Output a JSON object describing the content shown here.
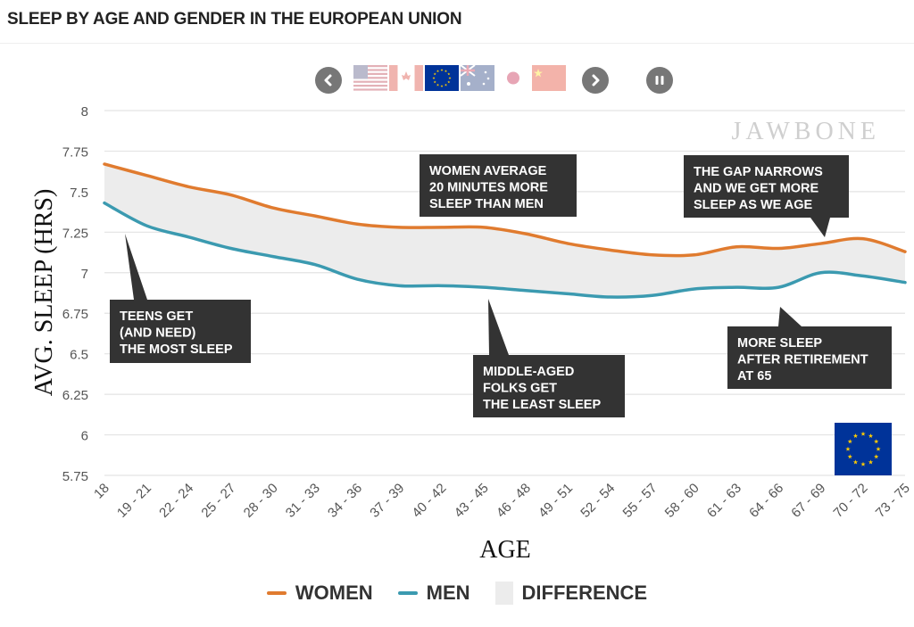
{
  "title": "SLEEP BY AGE AND GENDER IN THE EUROPEAN UNION",
  "controls": {
    "prev_icon": "chevron-left-icon",
    "next_icon": "chevron-right-icon",
    "pause_icon": "pause-icon"
  },
  "flags": [
    {
      "name": "usa-flag-icon",
      "active": false
    },
    {
      "name": "canada-flag-icon",
      "active": false
    },
    {
      "name": "eu-flag-icon",
      "active": true
    },
    {
      "name": "australia-flag-icon",
      "active": false
    },
    {
      "name": "japan-flag-icon",
      "active": false
    },
    {
      "name": "china-flag-icon",
      "active": false
    }
  ],
  "watermark": "JAWBONE",
  "colors": {
    "women": "#e07b2f",
    "men": "#3b9ab0",
    "difference": "#ececec",
    "callout": "#333333",
    "eu_blue": "#003399",
    "eu_gold": "#ffcc00"
  },
  "chart_data": {
    "type": "line",
    "title": "SLEEP BY AGE AND GENDER IN THE EUROPEAN UNION",
    "xlabel": "AGE",
    "ylabel": "AVG. SLEEP (HRS)",
    "ylim": [
      5.75,
      8
    ],
    "yticks": [
      "8",
      "7.75",
      "7.5",
      "7.25",
      "7",
      "6.75",
      "6.5",
      "6.25",
      "6",
      "5.75"
    ],
    "grid": true,
    "legend_position": "bottom",
    "categories": [
      "18",
      "19 - 21",
      "22 - 24",
      "25 - 27",
      "28 - 30",
      "31 - 33",
      "34 - 36",
      "37 - 39",
      "40 - 42",
      "43 - 45",
      "46 - 48",
      "49 - 51",
      "52 - 54",
      "55 - 57",
      "58 - 60",
      "61 - 63",
      "64 - 66",
      "67 - 69",
      "70 - 72",
      "73 - 75"
    ],
    "series": [
      {
        "name": "WOMEN",
        "values": [
          7.67,
          7.6,
          7.53,
          7.48,
          7.4,
          7.35,
          7.3,
          7.28,
          7.28,
          7.28,
          7.24,
          7.18,
          7.14,
          7.11,
          7.11,
          7.16,
          7.15,
          7.18,
          7.21,
          7.13
        ]
      },
      {
        "name": "MEN",
        "values": [
          7.43,
          7.29,
          7.22,
          7.15,
          7.1,
          7.05,
          6.96,
          6.92,
          6.92,
          6.91,
          6.89,
          6.87,
          6.85,
          6.86,
          6.9,
          6.91,
          6.91,
          7.0,
          6.98,
          6.94
        ]
      }
    ],
    "difference_label": "DIFFERENCE",
    "annotations": [
      {
        "text": "TEENS GET\n(AND NEED)\nTHE MOST SLEEP",
        "target_index": 1,
        "target_series": "MEN"
      },
      {
        "text": "WOMEN AVERAGE\n20 MINUTES MORE\nSLEEP THAN MEN",
        "target_index": null,
        "target_series": null
      },
      {
        "text": "MIDDLE-AGED\nFOLKS GET\nTHE LEAST SLEEP",
        "target_index": 9,
        "target_series": "MEN"
      },
      {
        "text": "THE GAP NARROWS\nAND WE GET MORE\nSLEEP AS WE AGE",
        "target_index": 17,
        "target_series": "WOMEN"
      },
      {
        "text": "MORE SLEEP\nAFTER RETIREMENT\nAT 65",
        "target_index": 16,
        "target_series": "MEN"
      }
    ]
  }
}
